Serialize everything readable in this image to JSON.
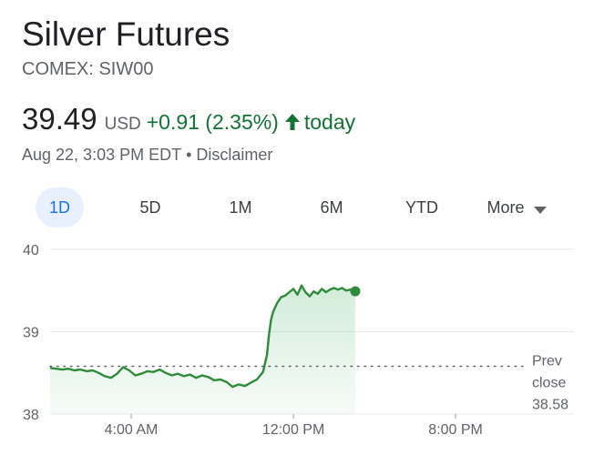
{
  "header": {
    "title": "Silver Futures",
    "exchange": "COMEX: SIW00"
  },
  "quote": {
    "price": "39.49",
    "currency": "USD",
    "change": "+0.91 (2.35%)",
    "period": "today",
    "timestamp": "Aug 22, 3:03 PM EDT",
    "separator": "•",
    "disclaimer": "Disclaimer",
    "trend_icon": "up-arrow-icon"
  },
  "tabs": {
    "items": [
      {
        "label": "1D",
        "active": true
      },
      {
        "label": "5D",
        "active": false
      },
      {
        "label": "1M",
        "active": false
      },
      {
        "label": "6M",
        "active": false
      },
      {
        "label": "YTD",
        "active": false
      }
    ],
    "more_label": "More",
    "more_icon": "caret-down-icon"
  },
  "colors": {
    "up_green": "#137333",
    "line_green": "#2e8b3a",
    "active_tab_bg": "#e8f0fe",
    "active_tab_text": "#1a73e8"
  },
  "chart_data": {
    "type": "area",
    "grid": true,
    "ylim": [
      38,
      40
    ],
    "y_ticks": [
      "38",
      "39",
      "40"
    ],
    "x_ticks": [
      "4:00 AM",
      "12:00 PM",
      "8:00 PM"
    ],
    "x_tick_hours": [
      4,
      12,
      20
    ],
    "xlim_hours": [
      0,
      23.5
    ],
    "prev_close": {
      "value": 38.58,
      "label": [
        "Prev",
        "close",
        "38.58"
      ]
    },
    "last_point": {
      "hour": 15.05,
      "value": 39.49
    },
    "series": [
      {
        "x_hours": [
          0,
          0.3,
          0.6,
          0.9,
          1.2,
          1.5,
          1.8,
          2.1,
          2.4,
          2.7,
          3.0,
          3.3,
          3.6,
          3.9,
          4.2,
          4.5,
          4.8,
          5.1,
          5.4,
          5.7,
          6.0,
          6.3,
          6.6,
          6.9,
          7.2,
          7.5,
          7.8,
          8.1,
          8.4,
          8.7,
          9.0,
          9.3,
          9.6,
          9.9,
          10.2,
          10.5,
          10.7,
          10.8,
          10.9,
          11.0,
          11.2,
          11.4,
          11.6,
          11.8,
          12.0,
          12.2,
          12.4,
          12.6,
          12.8,
          13.0,
          13.2,
          13.4,
          13.6,
          13.8,
          14.0,
          14.2,
          14.4,
          14.6,
          14.8,
          15.05
        ],
        "values": [
          38.56,
          38.55,
          38.54,
          38.55,
          38.53,
          38.54,
          38.52,
          38.53,
          38.5,
          38.46,
          38.44,
          38.49,
          38.57,
          38.53,
          38.47,
          38.49,
          38.52,
          38.51,
          38.54,
          38.5,
          38.47,
          38.49,
          38.46,
          38.48,
          38.44,
          38.47,
          38.45,
          38.41,
          38.42,
          38.39,
          38.33,
          38.36,
          38.34,
          38.38,
          38.42,
          38.51,
          38.72,
          38.98,
          39.15,
          39.24,
          39.35,
          39.42,
          39.44,
          39.48,
          39.52,
          39.45,
          39.56,
          39.48,
          39.43,
          39.49,
          39.46,
          39.52,
          39.48,
          39.51,
          39.53,
          39.51,
          39.53,
          39.5,
          39.51,
          39.49
        ]
      }
    ]
  }
}
